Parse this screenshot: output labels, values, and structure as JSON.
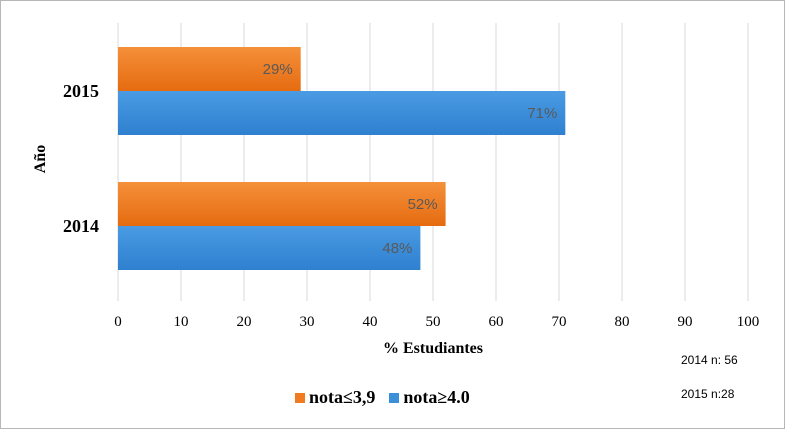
{
  "chart_data": {
    "type": "bar",
    "orientation": "horizontal",
    "categories": [
      "2015",
      "2014"
    ],
    "series": [
      {
        "name": "nota≤3,9",
        "color": "#f07b21",
        "values": [
          29,
          52
        ],
        "labels": [
          "29%",
          "52%"
        ]
      },
      {
        "name": "nota≥4.0",
        "color": "#3c8fd9",
        "values": [
          71,
          48
        ],
        "labels": [
          "71%",
          "48%"
        ]
      }
    ],
    "xlabel": "% Estudiantes",
    "ylabel": "Año",
    "xlim": [
      0,
      100
    ],
    "xticks": [
      0,
      10,
      20,
      30,
      40,
      50,
      60,
      70,
      80,
      90,
      100
    ],
    "grid": true,
    "legend_position": "bottom"
  },
  "notes": [
    "2014 n: 56",
    "2015 n:28"
  ]
}
